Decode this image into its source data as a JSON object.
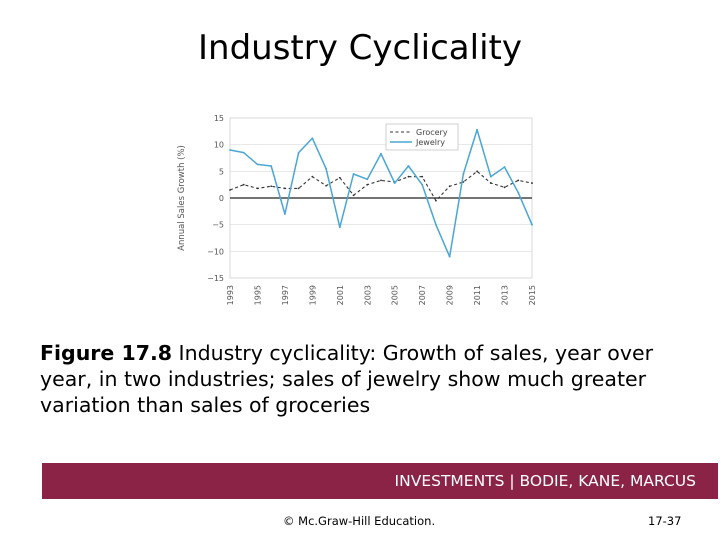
{
  "slide": {
    "title": "Industry Cyclicality",
    "caption_bold": "Figure 17.8",
    "caption_text": " Industry cyclicality: Growth of sales, year over year, in two industries; sales of jewelry show much greater variation than sales of groceries",
    "banner": "INVESTMENTS | BODIE, KANE, MARCUS",
    "copyright": "© Mc.Graw-Hill Education.",
    "page_number": "17-37"
  },
  "colors": {
    "banner": "#8b2346",
    "jewelry": "#4aa6d6",
    "grocery": "#333333"
  },
  "chart_data": {
    "type": "line",
    "title": "",
    "xlabel": "",
    "ylabel": "Annual Sales Growth (%)",
    "xlim": [
      1993,
      2015
    ],
    "ylim": [
      -15,
      15
    ],
    "yticks": [
      15,
      10,
      5,
      0,
      -5,
      -10,
      -15
    ],
    "ytick_labels": [
      "15",
      "10",
      "5",
      "0",
      "−5",
      "−10",
      "−15"
    ],
    "xticks": [
      1993,
      1995,
      1997,
      1999,
      2001,
      2003,
      2005,
      2007,
      2009,
      2011,
      2013,
      2015
    ],
    "grid": true,
    "legend": "top-right",
    "x": [
      1993,
      1994,
      1995,
      1996,
      1997,
      1998,
      1999,
      2000,
      2001,
      2002,
      2003,
      2004,
      2005,
      2006,
      2007,
      2008,
      2009,
      2010,
      2011,
      2012,
      2013,
      2014,
      2015
    ],
    "series": [
      {
        "name": "Grocery",
        "values": [
          1.5,
          2.5,
          1.8,
          2.2,
          1.8,
          1.8,
          4.0,
          2.3,
          3.8,
          0.5,
          2.5,
          3.3,
          3.0,
          4.0,
          4.0,
          -0.5,
          2.2,
          3.0,
          5.0,
          2.8,
          2.0,
          3.3,
          2.8
        ]
      },
      {
        "name": "Jewelry",
        "values": [
          9.0,
          8.5,
          6.3,
          6.0,
          -3.0,
          8.5,
          11.2,
          5.5,
          -5.5,
          4.5,
          3.5,
          8.3,
          2.8,
          6.0,
          2.5,
          -5.0,
          -11.0,
          4.5,
          12.8,
          4.0,
          5.8,
          1.0,
          -5.0
        ]
      }
    ]
  }
}
